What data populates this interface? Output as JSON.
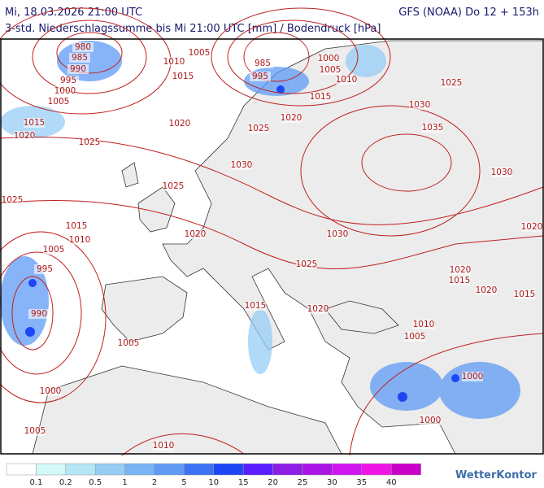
{
  "header": {
    "datetime": "Mi, 18.03.2026 21:00 UTC",
    "model": "GFS (NOAA) Do 12 + 153h",
    "subtitle": "3-std. Niederschlagssumme bis Mi 21:00 UTC [mm] / Bodendruck [hPa]"
  },
  "isobar_labels": [
    "980",
    "985",
    "990",
    "995",
    "1000",
    "1005",
    "1010",
    "1005",
    "1015",
    "985",
    "995",
    "1000",
    "1005",
    "1010",
    "1015",
    "1025",
    "1030",
    "1035",
    "1030",
    "1020",
    "1025",
    "1015",
    "1020",
    "1020",
    "1025",
    "1030",
    "1025",
    "1025",
    "1015",
    "1010",
    "1020",
    "1030",
    "1020",
    "1005",
    "995",
    "1025",
    "1020",
    "1015",
    "1020",
    "1015",
    "1015",
    "1020",
    "990",
    "1010",
    "1005",
    "1005",
    "1000",
    "1000",
    "1000",
    "1005",
    "1010"
  ],
  "legend": {
    "labels": [
      "0.1",
      "0.2",
      "0.5",
      "1",
      "2",
      "5",
      "10",
      "15",
      "20",
      "25",
      "30",
      "35",
      "40"
    ],
    "colors": [
      "#ffffff",
      "#d2f8f8",
      "#b4e6f5",
      "#96cdf5",
      "#78b4f5",
      "#5f9bf5",
      "#3c73f5",
      "#1e46f5",
      "#5a1eff",
      "#8c1ee6",
      "#aa14e6",
      "#d214f0",
      "#f014e6",
      "#c800c8"
    ]
  },
  "logo": "WetterKontor"
}
